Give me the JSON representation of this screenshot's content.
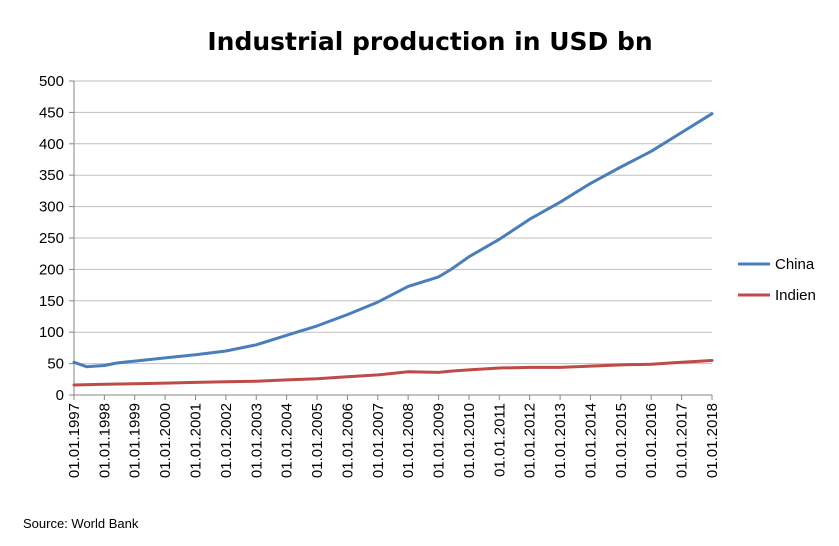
{
  "chart_data": {
    "type": "line",
    "title": "Industrial production in USD bn",
    "xlabel": "",
    "ylabel": "",
    "ylim": [
      0,
      500
    ],
    "yticks": [
      0,
      50,
      100,
      150,
      200,
      250,
      300,
      350,
      400,
      450,
      500
    ],
    "xlim": [
      "01.01.1997",
      "01.01.2018"
    ],
    "x": [
      "01.01.1997",
      "01.01.1998",
      "01.01.1999",
      "01.01.2000",
      "01.01.2001",
      "01.01.2002",
      "01.01.2003",
      "01.01.2004",
      "01.01.2005",
      "01.01.2006",
      "01.01.2007",
      "01.01.2008",
      "01.01.2009",
      "01.01.2010",
      "01.01.2011",
      "01.01.2012",
      "01.01.2013",
      "01.01.2014",
      "01.01.2015",
      "01.01.2016",
      "01.01.2017",
      "01.01.2018"
    ],
    "grid": true,
    "legend": "right",
    "series": [
      {
        "name": "China",
        "color": "#4a7ebb",
        "values": [
          [
            "01.01.1997",
            52
          ],
          [
            "01.06.1997",
            45
          ],
          [
            "01.01.1998",
            47
          ],
          [
            "01.06.1998",
            51
          ],
          [
            "01.01.1999",
            54
          ],
          [
            "01.01.2000",
            59
          ],
          [
            "01.01.2001",
            64
          ],
          [
            "01.01.2002",
            70
          ],
          [
            "01.01.2003",
            80
          ],
          [
            "01.01.2004",
            95
          ],
          [
            "01.01.2005",
            110
          ],
          [
            "01.01.2006",
            128
          ],
          [
            "01.01.2007",
            148
          ],
          [
            "01.01.2008",
            173
          ],
          [
            "01.01.2009",
            188
          ],
          [
            "01.06.2009",
            200
          ],
          [
            "01.01.2010",
            220
          ],
          [
            "01.01.2011",
            248
          ],
          [
            "01.01.2012",
            280
          ],
          [
            "01.01.2013",
            307
          ],
          [
            "01.01.2014",
            337
          ],
          [
            "01.01.2015",
            363
          ],
          [
            "01.01.2016",
            388
          ],
          [
            "01.01.2017",
            418
          ],
          [
            "01.01.2018",
            448
          ]
        ]
      },
      {
        "name": "Indien",
        "color": "#be4b48",
        "values": [
          [
            "01.01.1997",
            16
          ],
          [
            "01.01.1998",
            17
          ],
          [
            "01.01.1999",
            18
          ],
          [
            "01.01.2000",
            19
          ],
          [
            "01.01.2001",
            20
          ],
          [
            "01.01.2002",
            21
          ],
          [
            "01.01.2003",
            22
          ],
          [
            "01.01.2004",
            24
          ],
          [
            "01.01.2005",
            26
          ],
          [
            "01.01.2006",
            29
          ],
          [
            "01.01.2007",
            32
          ],
          [
            "01.01.2008",
            37
          ],
          [
            "01.01.2009",
            36
          ],
          [
            "01.06.2009",
            38
          ],
          [
            "01.01.2010",
            40
          ],
          [
            "01.01.2011",
            43
          ],
          [
            "01.01.2012",
            44
          ],
          [
            "01.01.2013",
            44
          ],
          [
            "01.01.2014",
            46
          ],
          [
            "01.01.2015",
            48
          ],
          [
            "01.01.2016",
            49
          ],
          [
            "01.01.2017",
            52
          ],
          [
            "01.01.2018",
            55
          ]
        ]
      }
    ]
  },
  "source": "Source: World Bank"
}
